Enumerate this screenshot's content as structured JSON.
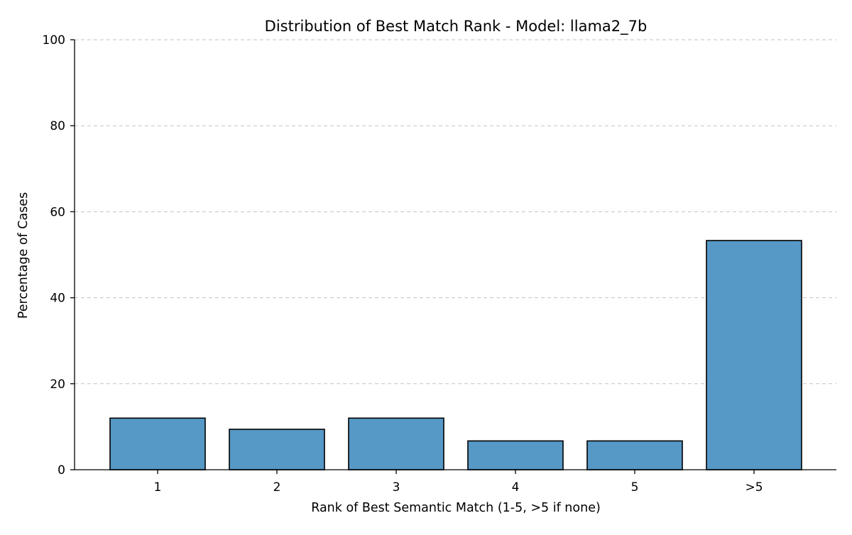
{
  "chart_data": {
    "type": "bar",
    "title": "Distribution of Best Match Rank - Model: llama2_7b",
    "xlabel": "Rank of Best Semantic Match (1-5, >5 if none)",
    "ylabel": "Percentage of Cases",
    "categories": [
      "1",
      "2",
      "3",
      "4",
      "5",
      ">5"
    ],
    "values": [
      12.0,
      9.4,
      12.0,
      6.7,
      6.7,
      53.3
    ],
    "ylim": [
      0,
      100
    ],
    "yticks": [
      "0",
      "20",
      "40",
      "60",
      "80",
      "100"
    ],
    "grid": "y-dashed",
    "bar_color": "#5698c6",
    "legend": "none"
  }
}
